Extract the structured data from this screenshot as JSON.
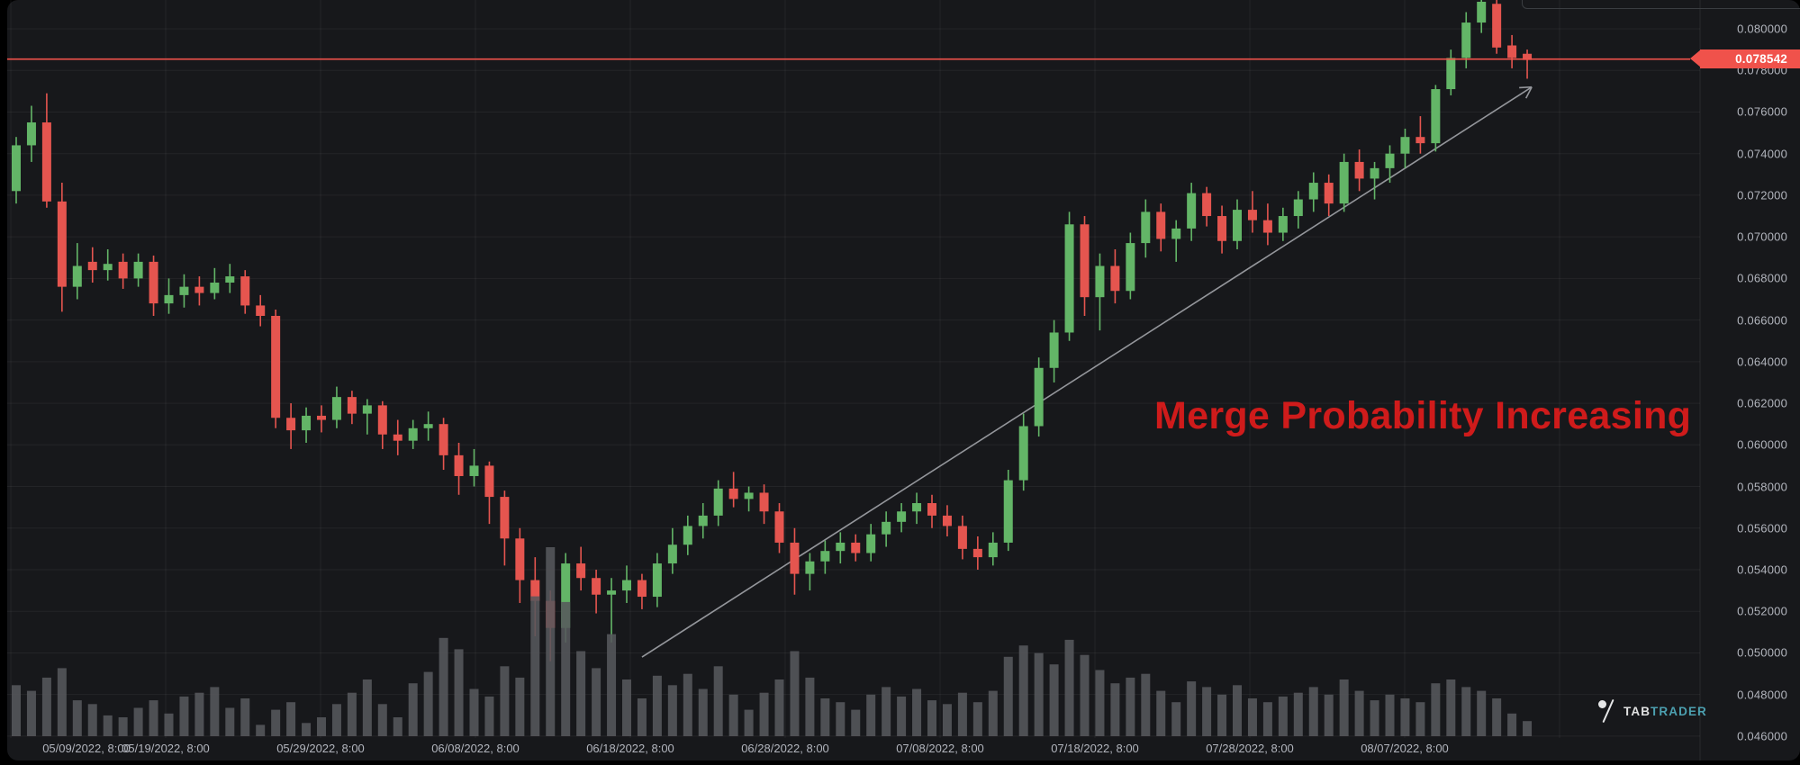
{
  "annotation": {
    "text": "Merge Probability Increasing",
    "color": "#cf1b1b"
  },
  "price_marker": {
    "label": "0.078542",
    "color": "#f0524b"
  },
  "watermark": {
    "prefix": "TAB",
    "suffix": "TRADER",
    "prefix_color": "#eceded",
    "suffix_color": "#4fa8b8"
  },
  "axes": {
    "y_labels": [
      "0.080000",
      "0.078000",
      "0.076000",
      "0.074000",
      "0.072000",
      "0.070000",
      "0.068000",
      "0.066000",
      "0.064000",
      "0.062000",
      "0.060000",
      "0.058000",
      "0.056000",
      "0.054000",
      "0.052000",
      "0.050000",
      "0.048000",
      "0.046000"
    ],
    "x_labels": [
      "05/09/2022, 8:00",
      "05/19/2022, 8:00",
      "05/29/2022, 8:00",
      "06/08/2022, 8:00",
      "06/18/2022, 8:00",
      "06/28/2022, 8:00",
      "07/08/2022, 8:00",
      "07/18/2022, 8:00",
      "07/28/2022, 8:00",
      "08/07/2022, 8:00"
    ]
  },
  "chart_data": {
    "type": "candlestick",
    "title": "",
    "interval": "1 day",
    "legend_position": "none",
    "grid": true,
    "y_axis": {
      "min": 0.046,
      "max": 0.08,
      "tick_step": 0.002,
      "side": "right"
    },
    "x_axis": {
      "start": "05/09/2022 8:00",
      "end": "08/16/2022 8:00",
      "tick_step_days": 10
    },
    "current_price": 0.078542,
    "colors": {
      "up": "#63b567",
      "down": "#e5554f",
      "volume": "#56585c",
      "grid": "rgba(255,255,255,0.055)",
      "arrow": "#94969b",
      "price_line": "#f0524b",
      "axis_text": "#b2b5bd",
      "background": "#17181b"
    },
    "trend_arrow": {
      "from": {
        "index": 41,
        "price": 0.0498
      },
      "to": {
        "index": 99.3,
        "price": 0.0772
      }
    },
    "candles": [
      {
        "t": "05/09",
        "o": 0.0722,
        "h": 0.0748,
        "l": 0.0716,
        "c": 0.0744,
        "v": 27
      },
      {
        "t": "05/10",
        "o": 0.0744,
        "h": 0.0763,
        "l": 0.0736,
        "c": 0.0755,
        "v": 24
      },
      {
        "t": "05/11",
        "o": 0.0755,
        "h": 0.0769,
        "l": 0.0714,
        "c": 0.0717,
        "v": 31
      },
      {
        "t": "05/12",
        "o": 0.0717,
        "h": 0.0726,
        "l": 0.0664,
        "c": 0.0676,
        "v": 36
      },
      {
        "t": "05/13",
        "o": 0.0676,
        "h": 0.0697,
        "l": 0.067,
        "c": 0.0686,
        "v": 19
      },
      {
        "t": "05/14",
        "o": 0.0688,
        "h": 0.0695,
        "l": 0.0678,
        "c": 0.0684,
        "v": 17
      },
      {
        "t": "05/15",
        "o": 0.0684,
        "h": 0.0694,
        "l": 0.0679,
        "c": 0.0687,
        "v": 11
      },
      {
        "t": "05/16",
        "o": 0.0688,
        "h": 0.0692,
        "l": 0.0675,
        "c": 0.068,
        "v": 10
      },
      {
        "t": "05/17",
        "o": 0.068,
        "h": 0.0692,
        "l": 0.0676,
        "c": 0.0688,
        "v": 15
      },
      {
        "t": "05/18",
        "o": 0.0688,
        "h": 0.0691,
        "l": 0.0662,
        "c": 0.0668,
        "v": 19
      },
      {
        "t": "05/19",
        "o": 0.0668,
        "h": 0.068,
        "l": 0.0663,
        "c": 0.0672,
        "v": 12
      },
      {
        "t": "05/20",
        "o": 0.0672,
        "h": 0.0682,
        "l": 0.0666,
        "c": 0.0676,
        "v": 21
      },
      {
        "t": "05/21",
        "o": 0.0676,
        "h": 0.0681,
        "l": 0.0667,
        "c": 0.0673,
        "v": 23
      },
      {
        "t": "05/22",
        "o": 0.0673,
        "h": 0.0685,
        "l": 0.067,
        "c": 0.0678,
        "v": 26
      },
      {
        "t": "05/23",
        "o": 0.0678,
        "h": 0.0687,
        "l": 0.0673,
        "c": 0.0681,
        "v": 15
      },
      {
        "t": "05/24",
        "o": 0.0681,
        "h": 0.0684,
        "l": 0.0663,
        "c": 0.0667,
        "v": 20
      },
      {
        "t": "05/25",
        "o": 0.0667,
        "h": 0.0672,
        "l": 0.0657,
        "c": 0.0662,
        "v": 6
      },
      {
        "t": "05/26",
        "o": 0.0662,
        "h": 0.0665,
        "l": 0.0608,
        "c": 0.0613,
        "v": 14
      },
      {
        "t": "05/27",
        "o": 0.0613,
        "h": 0.062,
        "l": 0.0598,
        "c": 0.0607,
        "v": 18
      },
      {
        "t": "05/28",
        "o": 0.0607,
        "h": 0.0618,
        "l": 0.0601,
        "c": 0.0614,
        "v": 7
      },
      {
        "t": "05/29",
        "o": 0.0614,
        "h": 0.0619,
        "l": 0.0606,
        "c": 0.0612,
        "v": 10
      },
      {
        "t": "05/30",
        "o": 0.0612,
        "h": 0.0628,
        "l": 0.0608,
        "c": 0.0623,
        "v": 17
      },
      {
        "t": "05/31",
        "o": 0.0623,
        "h": 0.0626,
        "l": 0.061,
        "c": 0.0615,
        "v": 23
      },
      {
        "t": "06/01",
        "o": 0.0615,
        "h": 0.0622,
        "l": 0.0605,
        "c": 0.0619,
        "v": 30
      },
      {
        "t": "06/02",
        "o": 0.0619,
        "h": 0.0621,
        "l": 0.0598,
        "c": 0.0605,
        "v": 17
      },
      {
        "t": "06/03",
        "o": 0.0605,
        "h": 0.0612,
        "l": 0.0595,
        "c": 0.0602,
        "v": 10
      },
      {
        "t": "06/04",
        "o": 0.0602,
        "h": 0.0612,
        "l": 0.0598,
        "c": 0.0608,
        "v": 28
      },
      {
        "t": "06/05",
        "o": 0.0608,
        "h": 0.0616,
        "l": 0.0602,
        "c": 0.061,
        "v": 34
      },
      {
        "t": "06/06",
        "o": 0.061,
        "h": 0.0613,
        "l": 0.0588,
        "c": 0.0595,
        "v": 52
      },
      {
        "t": "06/07",
        "o": 0.0595,
        "h": 0.0601,
        "l": 0.0576,
        "c": 0.0585,
        "v": 46
      },
      {
        "t": "06/08",
        "o": 0.0585,
        "h": 0.0598,
        "l": 0.058,
        "c": 0.059,
        "v": 25
      },
      {
        "t": "06/09",
        "o": 0.059,
        "h": 0.0592,
        "l": 0.0562,
        "c": 0.0575,
        "v": 21
      },
      {
        "t": "06/10",
        "o": 0.0575,
        "h": 0.0578,
        "l": 0.0542,
        "c": 0.0555,
        "v": 37
      },
      {
        "t": "06/11",
        "o": 0.0555,
        "h": 0.056,
        "l": 0.0524,
        "c": 0.0535,
        "v": 31
      },
      {
        "t": "06/12",
        "o": 0.0535,
        "h": 0.0546,
        "l": 0.0508,
        "c": 0.0525,
        "v": 74
      },
      {
        "t": "06/13",
        "o": 0.0525,
        "h": 0.053,
        "l": 0.0496,
        "c": 0.0512,
        "v": 100
      },
      {
        "t": "06/14",
        "o": 0.0512,
        "h": 0.0548,
        "l": 0.0505,
        "c": 0.0543,
        "v": 71
      },
      {
        "t": "06/15",
        "o": 0.0543,
        "h": 0.0551,
        "l": 0.053,
        "c": 0.0536,
        "v": 45
      },
      {
        "t": "06/16",
        "o": 0.0536,
        "h": 0.054,
        "l": 0.0519,
        "c": 0.0528,
        "v": 36
      },
      {
        "t": "06/17",
        "o": 0.0528,
        "h": 0.0536,
        "l": 0.0505,
        "c": 0.053,
        "v": 54
      },
      {
        "t": "06/18",
        "o": 0.053,
        "h": 0.0542,
        "l": 0.0524,
        "c": 0.0535,
        "v": 30
      },
      {
        "t": "06/19",
        "o": 0.0535,
        "h": 0.0538,
        "l": 0.0521,
        "c": 0.0527,
        "v": 20
      },
      {
        "t": "06/20",
        "o": 0.0527,
        "h": 0.0548,
        "l": 0.0522,
        "c": 0.0543,
        "v": 32
      },
      {
        "t": "06/21",
        "o": 0.0543,
        "h": 0.056,
        "l": 0.0538,
        "c": 0.0552,
        "v": 27
      },
      {
        "t": "06/22",
        "o": 0.0552,
        "h": 0.0566,
        "l": 0.0547,
        "c": 0.0561,
        "v": 33
      },
      {
        "t": "06/23",
        "o": 0.0561,
        "h": 0.0572,
        "l": 0.0555,
        "c": 0.0566,
        "v": 25
      },
      {
        "t": "06/24",
        "o": 0.0566,
        "h": 0.0583,
        "l": 0.0561,
        "c": 0.0579,
        "v": 37
      },
      {
        "t": "06/25",
        "o": 0.0579,
        "h": 0.0587,
        "l": 0.057,
        "c": 0.0574,
        "v": 22
      },
      {
        "t": "06/26",
        "o": 0.0574,
        "h": 0.058,
        "l": 0.0568,
        "c": 0.0577,
        "v": 14
      },
      {
        "t": "06/27",
        "o": 0.0577,
        "h": 0.0581,
        "l": 0.0562,
        "c": 0.0568,
        "v": 23
      },
      {
        "t": "06/28",
        "o": 0.0568,
        "h": 0.0572,
        "l": 0.0548,
        "c": 0.0553,
        "v": 30
      },
      {
        "t": "06/29",
        "o": 0.0553,
        "h": 0.056,
        "l": 0.0528,
        "c": 0.0538,
        "v": 45
      },
      {
        "t": "06/30",
        "o": 0.0538,
        "h": 0.0548,
        "l": 0.053,
        "c": 0.0544,
        "v": 31
      },
      {
        "t": "07/01",
        "o": 0.0544,
        "h": 0.0554,
        "l": 0.0538,
        "c": 0.0549,
        "v": 20
      },
      {
        "t": "07/02",
        "o": 0.0549,
        "h": 0.0558,
        "l": 0.0543,
        "c": 0.0553,
        "v": 18
      },
      {
        "t": "07/03",
        "o": 0.0553,
        "h": 0.0557,
        "l": 0.0544,
        "c": 0.0548,
        "v": 14
      },
      {
        "t": "07/04",
        "o": 0.0548,
        "h": 0.0562,
        "l": 0.0544,
        "c": 0.0557,
        "v": 22
      },
      {
        "t": "07/05",
        "o": 0.0557,
        "h": 0.0568,
        "l": 0.0551,
        "c": 0.0563,
        "v": 26
      },
      {
        "t": "07/06",
        "o": 0.0563,
        "h": 0.0572,
        "l": 0.0558,
        "c": 0.0568,
        "v": 21
      },
      {
        "t": "07/07",
        "o": 0.0568,
        "h": 0.0577,
        "l": 0.0562,
        "c": 0.0572,
        "v": 25
      },
      {
        "t": "07/08",
        "o": 0.0572,
        "h": 0.0576,
        "l": 0.056,
        "c": 0.0566,
        "v": 19
      },
      {
        "t": "07/09",
        "o": 0.0566,
        "h": 0.0571,
        "l": 0.0556,
        "c": 0.0561,
        "v": 17
      },
      {
        "t": "07/10",
        "o": 0.0561,
        "h": 0.0566,
        "l": 0.0545,
        "c": 0.055,
        "v": 23
      },
      {
        "t": "07/11",
        "o": 0.055,
        "h": 0.0556,
        "l": 0.054,
        "c": 0.0546,
        "v": 18
      },
      {
        "t": "07/12",
        "o": 0.0546,
        "h": 0.0558,
        "l": 0.0542,
        "c": 0.0553,
        "v": 24
      },
      {
        "t": "07/13",
        "o": 0.0553,
        "h": 0.0588,
        "l": 0.0549,
        "c": 0.0583,
        "v": 42
      },
      {
        "t": "07/14",
        "o": 0.0583,
        "h": 0.0615,
        "l": 0.0578,
        "c": 0.0609,
        "v": 48
      },
      {
        "t": "07/15",
        "o": 0.0609,
        "h": 0.0642,
        "l": 0.0604,
        "c": 0.0637,
        "v": 44
      },
      {
        "t": "07/16",
        "o": 0.0637,
        "h": 0.066,
        "l": 0.063,
        "c": 0.0654,
        "v": 38
      },
      {
        "t": "07/17",
        "o": 0.0654,
        "h": 0.0712,
        "l": 0.065,
        "c": 0.0706,
        "v": 51
      },
      {
        "t": "07/18",
        "o": 0.0706,
        "h": 0.071,
        "l": 0.0662,
        "c": 0.0671,
        "v": 43
      },
      {
        "t": "07/19",
        "o": 0.0671,
        "h": 0.0692,
        "l": 0.0655,
        "c": 0.0686,
        "v": 35
      },
      {
        "t": "07/20",
        "o": 0.0686,
        "h": 0.0694,
        "l": 0.0668,
        "c": 0.0674,
        "v": 28
      },
      {
        "t": "07/21",
        "o": 0.0674,
        "h": 0.0702,
        "l": 0.067,
        "c": 0.0697,
        "v": 31
      },
      {
        "t": "07/22",
        "o": 0.0697,
        "h": 0.0718,
        "l": 0.069,
        "c": 0.0712,
        "v": 33
      },
      {
        "t": "07/23",
        "o": 0.0712,
        "h": 0.0716,
        "l": 0.0693,
        "c": 0.0699,
        "v": 24
      },
      {
        "t": "07/24",
        "o": 0.0699,
        "h": 0.0708,
        "l": 0.0688,
        "c": 0.0704,
        "v": 18
      },
      {
        "t": "07/25",
        "o": 0.0704,
        "h": 0.0726,
        "l": 0.0698,
        "c": 0.0721,
        "v": 29
      },
      {
        "t": "07/26",
        "o": 0.0721,
        "h": 0.0724,
        "l": 0.0705,
        "c": 0.071,
        "v": 26
      },
      {
        "t": "07/27",
        "o": 0.071,
        "h": 0.0715,
        "l": 0.0692,
        "c": 0.0698,
        "v": 22
      },
      {
        "t": "07/28",
        "o": 0.0698,
        "h": 0.0718,
        "l": 0.0694,
        "c": 0.0713,
        "v": 27
      },
      {
        "t": "07/29",
        "o": 0.0713,
        "h": 0.0722,
        "l": 0.0702,
        "c": 0.0708,
        "v": 20
      },
      {
        "t": "07/30",
        "o": 0.0708,
        "h": 0.0716,
        "l": 0.0696,
        "c": 0.0702,
        "v": 18
      },
      {
        "t": "07/31",
        "o": 0.0702,
        "h": 0.0714,
        "l": 0.0698,
        "c": 0.071,
        "v": 21
      },
      {
        "t": "08/01",
        "o": 0.071,
        "h": 0.0722,
        "l": 0.0704,
        "c": 0.0718,
        "v": 23
      },
      {
        "t": "08/02",
        "o": 0.0718,
        "h": 0.0731,
        "l": 0.0712,
        "c": 0.0726,
        "v": 26
      },
      {
        "t": "08/03",
        "o": 0.0726,
        "h": 0.073,
        "l": 0.071,
        "c": 0.0716,
        "v": 22
      },
      {
        "t": "08/04",
        "o": 0.0716,
        "h": 0.074,
        "l": 0.0712,
        "c": 0.0736,
        "v": 30
      },
      {
        "t": "08/05",
        "o": 0.0736,
        "h": 0.0742,
        "l": 0.0722,
        "c": 0.0728,
        "v": 24
      },
      {
        "t": "08/06",
        "o": 0.0728,
        "h": 0.0736,
        "l": 0.0718,
        "c": 0.0733,
        "v": 19
      },
      {
        "t": "08/07",
        "o": 0.0733,
        "h": 0.0744,
        "l": 0.0726,
        "c": 0.074,
        "v": 22
      },
      {
        "t": "08/08",
        "o": 0.074,
        "h": 0.0752,
        "l": 0.0733,
        "c": 0.0748,
        "v": 20
      },
      {
        "t": "08/09",
        "o": 0.0748,
        "h": 0.0758,
        "l": 0.074,
        "c": 0.0745,
        "v": 18
      },
      {
        "t": "08/10",
        "o": 0.0745,
        "h": 0.0773,
        "l": 0.0741,
        "c": 0.0771,
        "v": 28
      },
      {
        "t": "08/11",
        "o": 0.0771,
        "h": 0.079,
        "l": 0.0768,
        "c": 0.0786,
        "v": 30
      },
      {
        "t": "08/12",
        "o": 0.0786,
        "h": 0.0808,
        "l": 0.0781,
        "c": 0.0803,
        "v": 26
      },
      {
        "t": "08/13",
        "o": 0.0803,
        "h": 0.0816,
        "l": 0.0798,
        "c": 0.0813,
        "v": 24
      },
      {
        "t": "08/14",
        "o": 0.0812,
        "h": 0.0814,
        "l": 0.0788,
        "c": 0.0791,
        "v": 20
      },
      {
        "t": "08/15",
        "o": 0.0792,
        "h": 0.0797,
        "l": 0.0781,
        "c": 0.0786,
        "v": 12
      },
      {
        "t": "08/16",
        "o": 0.0788,
        "h": 0.079,
        "l": 0.0776,
        "c": 0.0785,
        "v": 8
      }
    ]
  }
}
